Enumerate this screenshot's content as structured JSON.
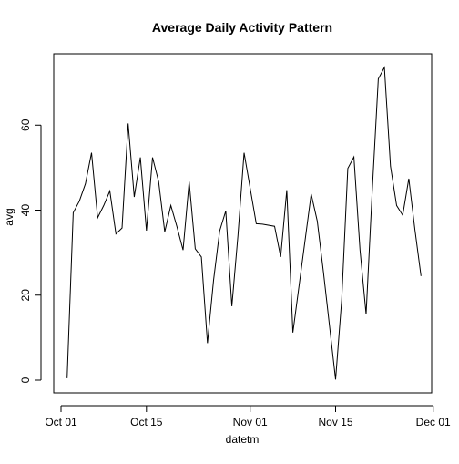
{
  "chart_data": {
    "type": "line",
    "title": "Average Daily Activity Pattern",
    "xlabel": "datetm",
    "ylabel": "avg",
    "x_axis_type": "date",
    "xlim": [
      "2012-10-01",
      "2012-11-30"
    ],
    "ylim": [
      0,
      74
    ],
    "x_ticks": [
      {
        "date": "2012-10-01",
        "label": "Oct 01"
      },
      {
        "date": "2012-10-15",
        "label": "Oct 15"
      },
      {
        "date": "2012-11-01",
        "label": "Nov 01"
      },
      {
        "date": "2012-11-15",
        "label": "Nov 15"
      },
      {
        "date": "2012-12-01",
        "label": "Dec 01"
      }
    ],
    "y_ticks": [
      0,
      20,
      40,
      60
    ],
    "grid": false,
    "legend": "none",
    "line_color": "#000000",
    "series": [
      {
        "x": [
          "2012-10-02",
          "2012-10-03",
          "2012-10-04",
          "2012-10-05",
          "2012-10-06",
          "2012-10-07",
          "2012-10-08",
          "2012-10-09",
          "2012-10-10",
          "2012-10-11",
          "2012-10-12",
          "2012-10-13",
          "2012-10-14",
          "2012-10-15",
          "2012-10-16",
          "2012-10-17",
          "2012-10-18",
          "2012-10-19",
          "2012-10-20",
          "2012-10-21",
          "2012-10-22",
          "2012-10-23",
          "2012-10-24",
          "2012-10-25",
          "2012-10-26",
          "2012-10-27",
          "2012-10-28",
          "2012-10-29",
          "2012-10-30",
          "2012-10-31",
          "2012-11-02",
          "2012-11-03",
          "2012-11-05",
          "2012-11-06",
          "2012-11-07",
          "2012-11-08",
          "2012-11-11",
          "2012-11-12",
          "2012-11-13",
          "2012-11-15",
          "2012-11-16",
          "2012-11-17",
          "2012-11-18",
          "2012-11-19",
          "2012-11-20",
          "2012-11-21",
          "2012-11-22",
          "2012-11-23",
          "2012-11-24",
          "2012-11-25",
          "2012-11-26",
          "2012-11-27",
          "2012-11-28",
          "2012-11-29"
        ],
        "values": [
          0.44,
          39.4,
          42.1,
          46.2,
          53.5,
          38.2,
          41.1,
          44.5,
          34.4,
          35.8,
          60.4,
          43.1,
          52.4,
          35.2,
          52.4,
          46.7,
          34.9,
          41.1,
          36.1,
          30.6,
          46.7,
          30.9,
          29.0,
          8.7,
          23.5,
          35.1,
          39.8,
          17.4,
          34.1,
          53.5,
          36.8,
          36.7,
          36.2,
          29.0,
          44.7,
          11.2,
          43.8,
          37.4,
          25.5,
          0.14,
          18.9,
          49.8,
          52.5,
          30.7,
          15.5,
          44.4,
          70.9,
          73.6,
          50.3,
          41.1,
          38.8,
          47.4,
          35.4,
          24.5
        ]
      }
    ]
  }
}
